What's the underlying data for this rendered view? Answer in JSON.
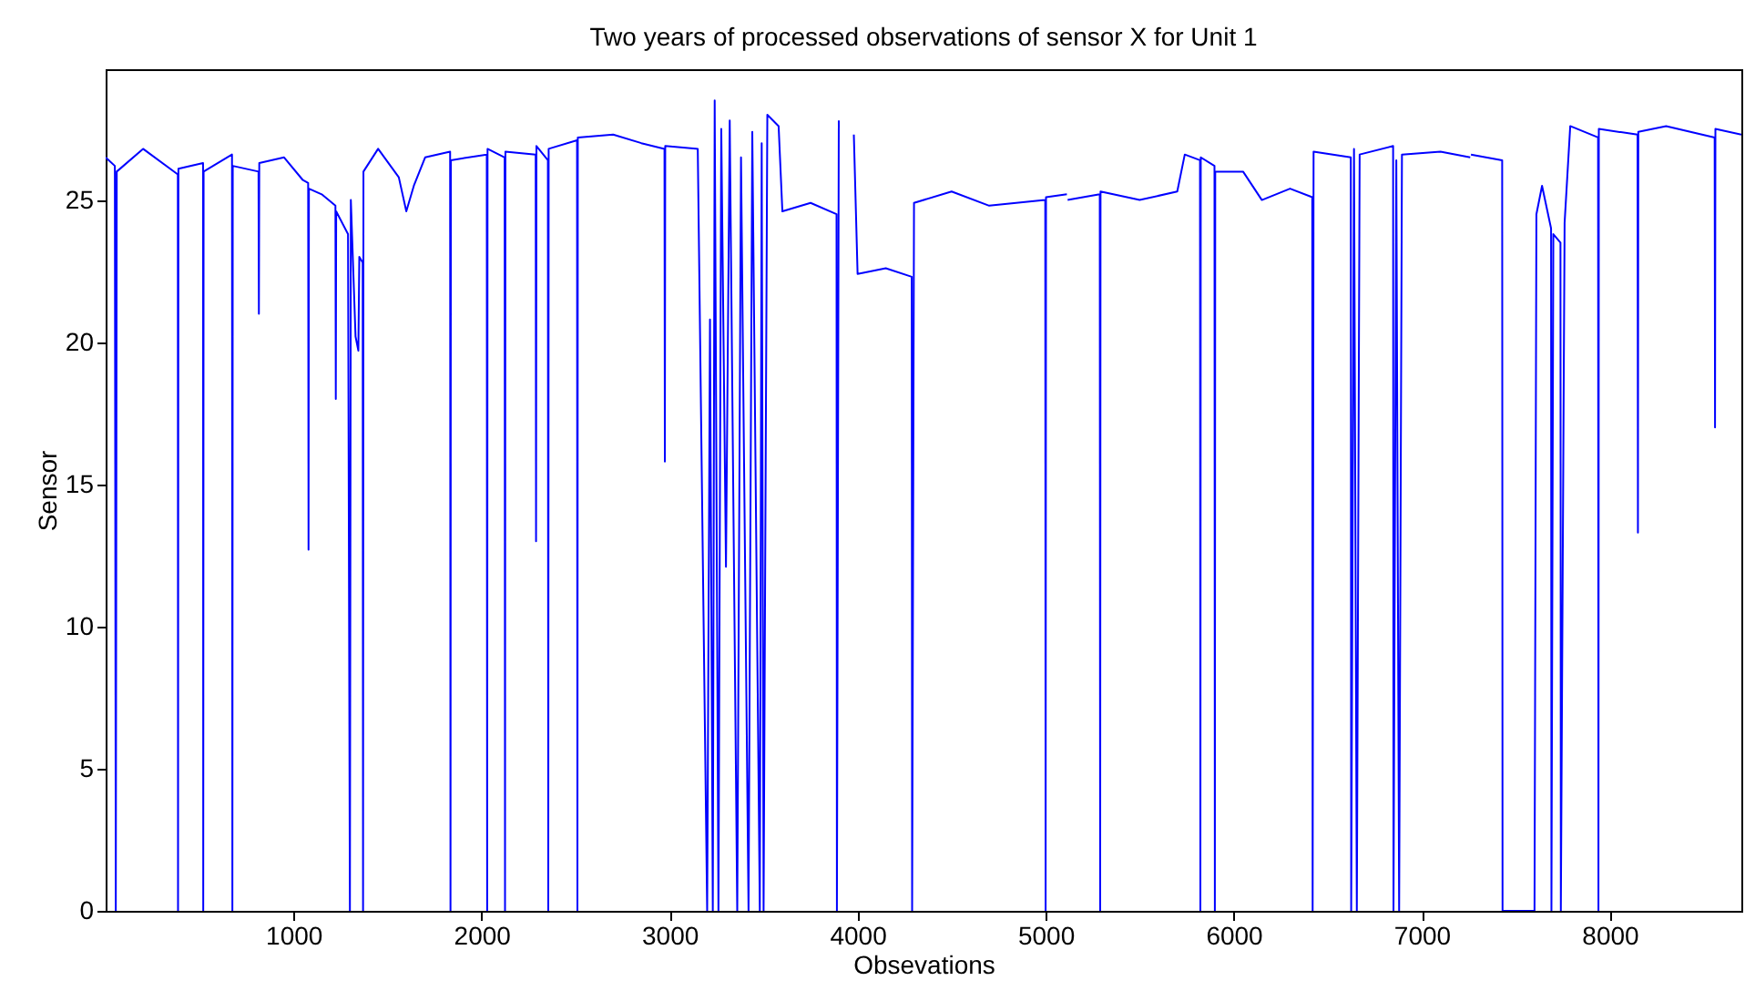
{
  "chart_data": {
    "type": "line",
    "title": "Two years of processed observations of sensor X for Unit 1",
    "xlabel": "Obsevations",
    "ylabel": "Sensor",
    "xlim": [
      1,
      8700
    ],
    "ylim": [
      0,
      29.6
    ],
    "xticks": [
      1000,
      2000,
      3000,
      4000,
      5000,
      6000,
      7000,
      8000
    ],
    "yticks": [
      0,
      5,
      10,
      15,
      20,
      25
    ],
    "grid": false,
    "marker": "none",
    "line_style": "solid",
    "x": [
      1,
      50,
      55,
      60,
      200,
      385,
      386,
      388,
      519,
      520,
      522,
      673,
      675,
      677,
      814,
      816,
      818,
      950,
      1050,
      1078,
      1080,
      1082,
      1150,
      1223,
      1225,
      1227,
      1290,
      1300,
      1305,
      1330,
      1345,
      1350,
      1368,
      1370,
      1372,
      1450,
      1560,
      1600,
      1640,
      1700,
      1833,
      1835,
      1837,
      2028,
      2030,
      2032,
      2123,
      2125,
      2127,
      2288,
      2290,
      2292,
      2353,
      2355,
      2357,
      2508,
      2510,
      2512,
      2700,
      2850,
      2973,
      2975,
      2977,
      3150,
      3200,
      3215,
      3230,
      3240,
      3260,
      3275,
      3300,
      3320,
      3360,
      3380,
      3420,
      3440,
      3480,
      3490,
      3500,
      3520,
      3580,
      3600,
      3750,
      3888,
      3890,
      3900,
      3950,
      3980,
      4000,
      4150,
      4288,
      4290,
      4300,
      4500,
      4700,
      4998,
      5000,
      5002,
      5113,
      5115,
      5117,
      5288,
      5290,
      5292,
      5500,
      5700,
      5740,
      5821,
      5823,
      5825,
      5898,
      5900,
      5902,
      6050,
      6150,
      6300,
      6418,
      6420,
      6425,
      6623,
      6625,
      6640,
      6655,
      6670,
      6848,
      6850,
      6865,
      6880,
      6895,
      7100,
      7258,
      7260,
      7262,
      7428,
      7430,
      7600,
      7610,
      7640,
      7688,
      7690,
      7700,
      7738,
      7740,
      7760,
      7790,
      7938,
      7940,
      7942,
      8148,
      8150,
      8152,
      8300,
      8558,
      8560,
      8562,
      8700
    ],
    "series": [
      {
        "color": "#0000ff",
        "values": [
          26.5,
          26.2,
          0,
          26.0,
          26.8,
          25.9,
          0,
          26.1,
          26.3,
          0,
          26.0,
          26.6,
          0,
          26.2,
          26.0,
          21.0,
          26.3,
          26.5,
          25.7,
          25.6,
          12.7,
          25.4,
          25.2,
          24.8,
          18.0,
          24.6,
          23.8,
          0,
          25.0,
          20.2,
          19.7,
          23.0,
          22.8,
          0,
          26.0,
          26.8,
          25.8,
          24.6,
          25.5,
          26.5,
          26.7,
          0,
          26.4,
          26.6,
          0,
          26.8,
          26.5,
          0,
          26.7,
          26.6,
          13.0,
          26.9,
          26.4,
          0,
          26.8,
          27.1,
          0,
          27.2,
          27.3,
          27.0,
          26.8,
          15.8,
          26.9,
          26.8,
          0,
          20.8,
          0,
          28.5,
          0,
          27.5,
          12.1,
          27.8,
          0,
          26.5,
          0,
          27.4,
          0,
          27.0,
          0,
          28.0,
          27.6,
          24.6,
          24.9,
          24.5,
          0,
          27.8,
          null,
          27.3,
          22.4,
          22.6,
          22.3,
          0,
          24.9,
          25.3,
          24.8,
          25.0,
          0,
          25.1,
          25.2,
          null,
          25.0,
          25.2,
          0,
          25.3,
          25.0,
          25.3,
          26.6,
          26.4,
          0,
          26.5,
          26.2,
          0,
          26.0,
          26.0,
          25.0,
          25.4,
          25.1,
          0,
          26.7,
          26.5,
          0,
          26.8,
          0,
          26.6,
          26.9,
          0,
          26.4,
          0,
          26.6,
          26.7,
          26.5,
          null,
          26.6,
          26.4,
          0,
          0,
          24.5,
          25.5,
          24.0,
          0,
          23.8,
          23.5,
          0,
          24.2,
          27.6,
          27.2,
          0,
          27.5,
          27.3,
          13.3,
          27.4,
          27.6,
          27.2,
          17.0,
          27.5,
          27.3
        ]
      }
    ]
  }
}
